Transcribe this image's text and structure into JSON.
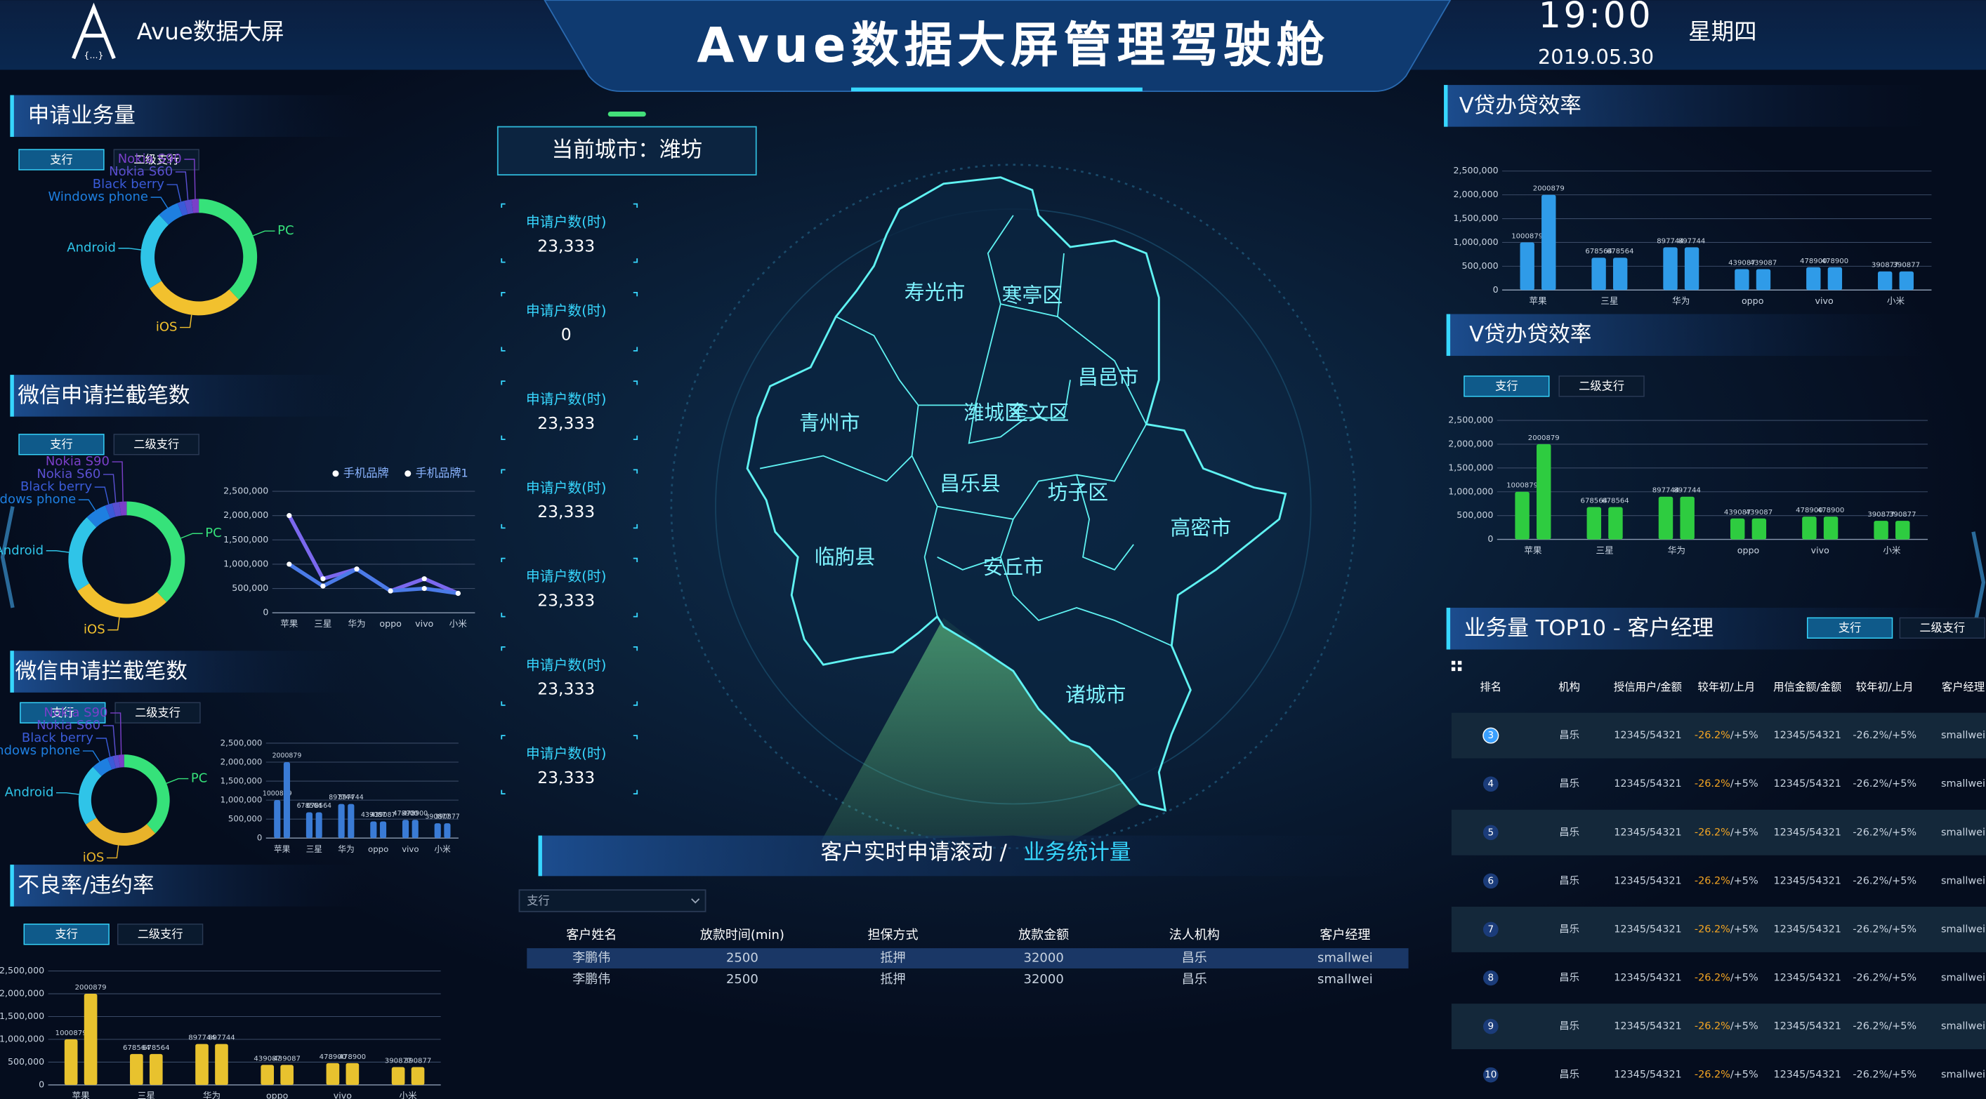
{
  "header": {
    "logo": "Avue数据大屏",
    "logo_mark": "{...}",
    "title": "Avue数据大屏管理驾驶舱",
    "time": "19:00",
    "date": "2019.05.30",
    "weekday": "星期四"
  },
  "panels": [
    {
      "title": "申请业务量",
      "tabs": [
        "支行",
        "二级支行"
      ]
    },
    {
      "title": "微信申请拦截笔数",
      "tabs": [
        "支行",
        "二级支行"
      ]
    },
    {
      "title": "微信申请拦截笔数",
      "tabs": [
        "支行",
        "二级支行"
      ]
    },
    {
      "title": "不良率/违约率",
      "tabs": [
        "支行",
        "二级支行"
      ]
    },
    {
      "title": "V贷办贷效率"
    },
    {
      "title": "V贷办贷效率",
      "tabs": [
        "支行",
        "二级支行"
      ]
    },
    {
      "title": "业务量 TOP10 - 客户经理",
      "tabs": [
        "支行",
        "二级支行"
      ]
    }
  ],
  "city": {
    "label": "当前城市：潍坊",
    "stats": [
      {
        "label": "申请户数(时)",
        "value": "23,333"
      },
      {
        "label": "申请户数(时)",
        "value": "0"
      },
      {
        "label": "申请户数(时)",
        "value": "23,333"
      },
      {
        "label": "申请户数(时)",
        "value": "23,333"
      },
      {
        "label": "申请户数(时)",
        "value": "23,333"
      },
      {
        "label": "申请户数(时)",
        "value": "23,333"
      },
      {
        "label": "申请户数(时)",
        "value": "23,333"
      }
    ]
  },
  "map": {
    "regions": [
      "寿光市",
      "寒亭区",
      "昌邑市",
      "青州市",
      "潍城区",
      "奎文区",
      "昌乐县",
      "坊子区",
      "高密市",
      "临朐县",
      "安丘市",
      "诸城市"
    ]
  },
  "feed": {
    "title": "客户实时申请滚动 / ",
    "highlight": "业务统计量",
    "select": "支行",
    "columns": [
      "客户姓名",
      "放款时间(min)",
      "担保方式",
      "放款金额",
      "法人机构",
      "客户经理"
    ],
    "rows": [
      [
        "李鹏伟",
        "2500",
        "抵押",
        "32000",
        "昌乐",
        "smallwei"
      ],
      [
        "李鹏伟",
        "2500",
        "抵押",
        "32000",
        "昌乐",
        "smallwei"
      ]
    ]
  },
  "ranking": {
    "columns": [
      "排名",
      "机构",
      "授信用户/金额",
      "较年初/上月",
      "用信金额/金额",
      "较年初/上月",
      "客户经理"
    ],
    "rows": [
      [
        3,
        "昌乐",
        "12345/54321",
        [
          "-26.2%",
          "/+5%"
        ],
        "12345/54321",
        "-26.2%/+5%",
        "smallwei"
      ],
      [
        4,
        "昌乐",
        "12345/54321",
        [
          "-26.2%",
          "/+5%"
        ],
        "12345/54321",
        "-26.2%/+5%",
        "smallwei"
      ],
      [
        5,
        "昌乐",
        "12345/54321",
        [
          "-26.2%",
          "/+5%"
        ],
        "12345/54321",
        "-26.2%/+5%",
        "smallwei"
      ],
      [
        6,
        "昌乐",
        "12345/54321",
        [
          "-26.2%",
          "/+5%"
        ],
        "12345/54321",
        "-26.2%/+5%",
        "smallwei"
      ],
      [
        7,
        "昌乐",
        "12345/54321",
        [
          "-26.2%",
          "/+5%"
        ],
        "12345/54321",
        "-26.2%/+5%",
        "smallwei"
      ],
      [
        8,
        "昌乐",
        "12345/54321",
        [
          "-26.2%",
          "/+5%"
        ],
        "12345/54321",
        "-26.2%/+5%",
        "smallwei"
      ],
      [
        9,
        "昌乐",
        "12345/54321",
        [
          "-26.2%",
          "/+5%"
        ],
        "12345/54321",
        "-26.2%/+5%",
        "smallwei"
      ],
      [
        10,
        "昌乐",
        "12345/54321",
        [
          "-26.2%",
          "/+5%"
        ],
        "12345/54321",
        "-26.2%/+5%",
        "smallwei"
      ]
    ]
  },
  "chart_data": [
    {
      "type": "donut",
      "categories": [
        "PC",
        "iOS",
        "Android",
        "Windows phone",
        "Black berry",
        "Nokia S60",
        "Nokia S90"
      ],
      "values": [
        38,
        28,
        22,
        6,
        2,
        2,
        2
      ],
      "colors": [
        "#36e27a",
        "#f2c12e",
        "#2fc4e8",
        "#1e7fe0",
        "#3a5bd8",
        "#5a4fd0",
        "#7a3fc8"
      ]
    },
    {
      "type": "donut",
      "categories": [
        "PC",
        "iOS",
        "Android",
        "Windows phone",
        "Black berry",
        "Nokia S60",
        "Nokia S90"
      ],
      "values": [
        38,
        28,
        22,
        6,
        2,
        2,
        2
      ],
      "colors": [
        "#36e27a",
        "#f2c12e",
        "#2fc4e8",
        "#1e7fe0",
        "#3a5bd8",
        "#5a4fd0",
        "#7a3fc8"
      ]
    },
    {
      "type": "line",
      "categories": [
        "苹果",
        "三星",
        "华为",
        "oppo",
        "vivo",
        "小米"
      ],
      "series": [
        {
          "name": "手机品牌",
          "color": "#7b68ee",
          "values": [
            2000000,
            700000,
            900000,
            450000,
            700000,
            400000
          ]
        },
        {
          "name": "手机品牌1",
          "color": "#4b7be8",
          "values": [
            1000000,
            550000,
            900000,
            450000,
            500000,
            400000
          ]
        }
      ],
      "ylim": [
        0,
        2500000
      ],
      "yticks": [
        0,
        {
          "value": 500000,
          "label": "500,000"
        },
        {
          "value": 1000000,
          "label": "1,000,000"
        },
        {
          "value": 1500000,
          "label": "1,500,000"
        },
        {
          "value": 2000000,
          "label": "2,000,000"
        },
        {
          "value": 2500000,
          "label": "2,500,000"
        }
      ],
      "grid": true
    },
    {
      "type": "donut",
      "categories": [
        "PC",
        "iOS",
        "Android",
        "Windows phone",
        "Black berry",
        "Nokia S60",
        "Nokia S90"
      ],
      "values": [
        38,
        28,
        22,
        6,
        2,
        2,
        2
      ],
      "colors": [
        "#36e27a",
        "#e8b32a",
        "#2fc4e8",
        "#1e7fe0",
        "#3a5bd8",
        "#5a4fd0",
        "#7a3fc8"
      ]
    },
    {
      "type": "bar",
      "categories": [
        "苹果",
        "三星",
        "华为",
        "oppo",
        "vivo",
        "小米"
      ],
      "series": [
        {
          "color": "#3a7bd5",
          "values": [
            1000879,
            678564,
            897744,
            439087,
            478900,
            390877
          ]
        },
        {
          "color": "#3a7bd5",
          "values": [
            2000879,
            678564,
            897744,
            439087,
            478900,
            390877
          ]
        }
      ],
      "ylim": [
        0,
        2500000
      ],
      "yticks": [
        0,
        {
          "value": 500000,
          "label": "500,000"
        },
        {
          "value": 1000000,
          "label": "1,000,000"
        },
        {
          "value": 1500000,
          "label": "1,500,000"
        },
        {
          "value": 2000000,
          "label": "2,000,000"
        },
        {
          "value": 2500000,
          "label": "2,500,000"
        }
      ],
      "grid": true
    },
    {
      "type": "bar",
      "categories": [
        "苹果",
        "三星",
        "华为",
        "oppo",
        "vivo",
        "小米"
      ],
      "series": [
        {
          "color": "#e8c22e",
          "values": [
            1000879,
            678564,
            897744,
            439087,
            478900,
            390877
          ]
        },
        {
          "color": "#e8c22e",
          "values": [
            2000879,
            678564,
            897744,
            439087,
            478900,
            390877
          ]
        }
      ],
      "ylim": [
        0,
        2500000
      ],
      "yticks": [
        0,
        {
          "value": 500000,
          "label": "500,000"
        },
        {
          "value": 1000000,
          "label": "1,000,000"
        },
        {
          "value": 1500000,
          "label": "1,500,000"
        },
        {
          "value": 2000000,
          "label": "2,000,000"
        },
        {
          "value": 2500000,
          "label": "2,500,000"
        }
      ],
      "grid": true
    },
    {
      "type": "bar",
      "categories": [
        "苹果",
        "三星",
        "华为",
        "oppo",
        "vivo",
        "小米"
      ],
      "series": [
        {
          "color": "#2f9be8",
          "values": [
            1000879,
            678564,
            897744,
            439087,
            478900,
            390877
          ]
        },
        {
          "color": "#2f9be8",
          "values": [
            2000879,
            678564,
            897744,
            439087,
            478900,
            390877
          ]
        }
      ],
      "ylim": [
        0,
        2500000
      ],
      "yticks": [
        0,
        {
          "value": 500000,
          "label": "500,000"
        },
        {
          "value": 1000000,
          "label": "1,000,000"
        },
        {
          "value": 1500000,
          "label": "1,500,000"
        },
        {
          "value": 2000000,
          "label": "2,000,000"
        },
        {
          "value": 2500000,
          "label": "2,500,000"
        }
      ],
      "grid": true
    },
    {
      "type": "bar",
      "categories": [
        "苹果",
        "三星",
        "华为",
        "oppo",
        "vivo",
        "小米"
      ],
      "series": [
        {
          "color": "#2ecc40",
          "values": [
            1000879,
            678564,
            897744,
            439087,
            478900,
            390877
          ]
        },
        {
          "color": "#2ecc40",
          "values": [
            2000879,
            678564,
            897744,
            439087,
            478900,
            390877
          ]
        }
      ],
      "ylim": [
        0,
        2500000
      ],
      "yticks": [
        0,
        {
          "value": 500000,
          "label": "500,000"
        },
        {
          "value": 1000000,
          "label": "1,000,000"
        },
        {
          "value": 1500000,
          "label": "1,500,000"
        },
        {
          "value": 2000000,
          "label": "2,000,000"
        },
        {
          "value": 2500000,
          "label": "2,500,000"
        }
      ],
      "grid": true
    }
  ]
}
